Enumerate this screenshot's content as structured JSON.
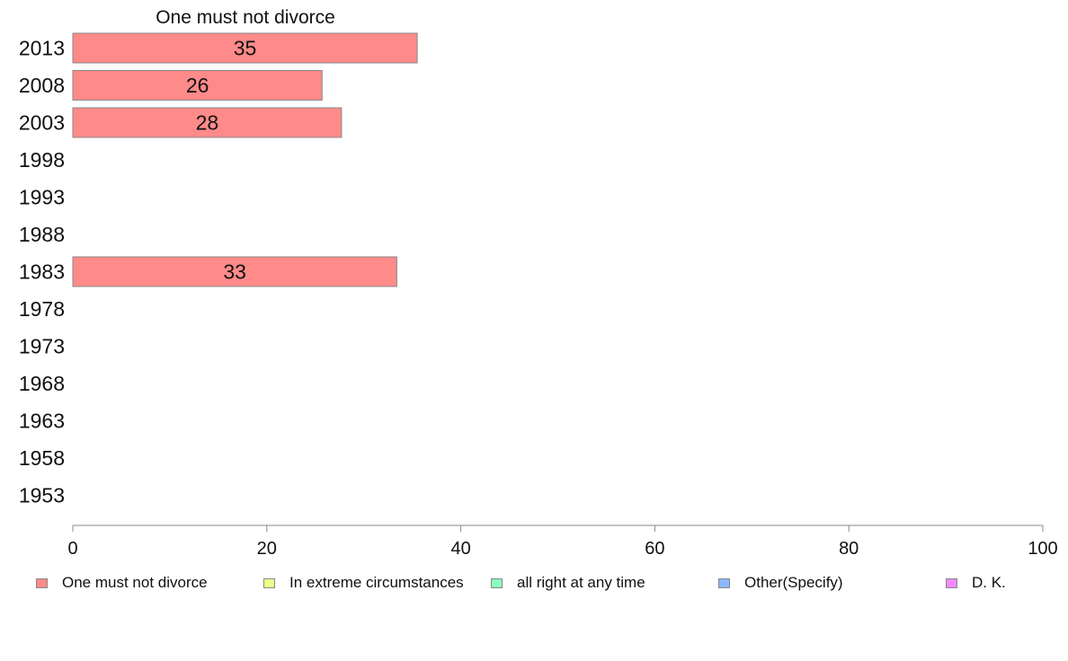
{
  "chart_data": {
    "type": "bar",
    "orientation": "horizontal",
    "stacked": true,
    "title": "One must not divorce",
    "categories": [
      "2013",
      "2008",
      "2003",
      "1998",
      "1993",
      "1988",
      "1983",
      "1978",
      "1973",
      "1968",
      "1963",
      "1958",
      "1953"
    ],
    "series": [
      {
        "name": "One must not divorce",
        "color": "#ff8a8a",
        "values": [
          35.5,
          25.7,
          27.7,
          null,
          null,
          null,
          33.4,
          null,
          null,
          null,
          null,
          null,
          null
        ],
        "labels": [
          "35",
          "26",
          "28",
          "",
          "",
          "",
          "33",
          "",
          "",
          "",
          "",
          "",
          ""
        ]
      },
      {
        "name": "In extreme circumstances",
        "color": "#eeff8a",
        "values": [
          null,
          null,
          null,
          null,
          null,
          null,
          null,
          null,
          null,
          null,
          null,
          null,
          null
        ]
      },
      {
        "name": "all right at any time",
        "color": "#8affc0",
        "values": [
          null,
          null,
          null,
          null,
          null,
          null,
          null,
          null,
          null,
          null,
          null,
          null,
          null
        ]
      },
      {
        "name": "Other(Specify)",
        "color": "#8ab8ff",
        "values": [
          null,
          null,
          null,
          null,
          null,
          null,
          null,
          null,
          null,
          null,
          null,
          null,
          null
        ]
      },
      {
        "name": "D. K.",
        "color": "#f08aff",
        "values": [
          null,
          null,
          null,
          null,
          null,
          null,
          null,
          null,
          null,
          null,
          null,
          null,
          null
        ]
      }
    ],
    "xlim": [
      0,
      100
    ],
    "xticks": [
      "0",
      "20",
      "40",
      "60",
      "80",
      "100"
    ],
    "xlabel": "",
    "ylabel": "",
    "grid": false,
    "legend": "bottom"
  }
}
